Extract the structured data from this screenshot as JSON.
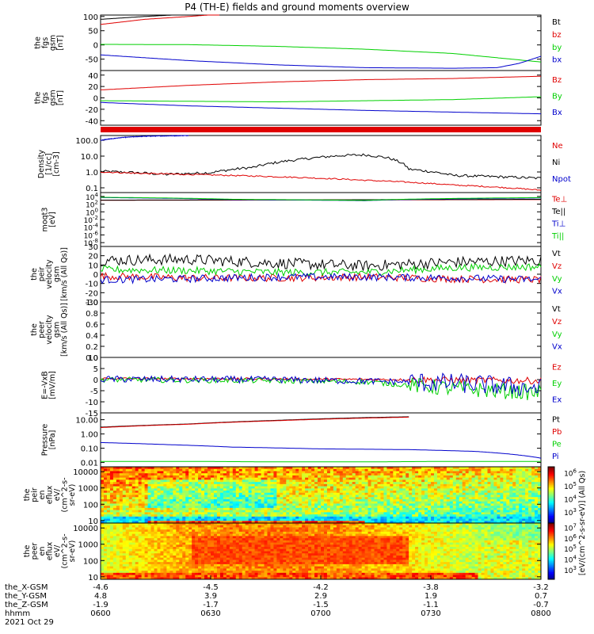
{
  "title": "P4 (TH-E) fields and ground moments overview",
  "colors": {
    "black": "#000000",
    "red": "#e00000",
    "green": "#00d000",
    "blue": "#0000cc",
    "frame": "#000000"
  },
  "chart_data": [
    {
      "type": "line",
      "name": "fgs_gsm",
      "ylabel": [
        "the",
        "fgs",
        "gsm",
        "[nT]"
      ],
      "ylim": [
        -90,
        105
      ],
      "yticks": [
        100,
        50,
        0,
        -50
      ],
      "tick_labels": [
        "100",
        "50",
        "0",
        "-50"
      ],
      "legend": [
        "Bt",
        "bz",
        "by",
        "bx"
      ],
      "legend_colors": [
        "black",
        "red",
        "green",
        "blue"
      ],
      "series": [
        {
          "name": "Bt",
          "color": "black",
          "x": [
            0,
            0.1,
            0.2,
            0.27
          ],
          "y": [
            90,
            100,
            108,
            115
          ]
        },
        {
          "name": "bz",
          "color": "red",
          "x": [
            0,
            0.1,
            0.2,
            0.27
          ],
          "y": [
            72,
            90,
            100,
            108
          ]
        },
        {
          "name": "by",
          "color": "green",
          "x": [
            0,
            0.2,
            0.4,
            0.6,
            0.8,
            0.9,
            1
          ],
          "y": [
            2,
            1,
            -5,
            -15,
            -30,
            -45,
            -60
          ]
        },
        {
          "name": "bx",
          "color": "blue",
          "x": [
            0,
            0.2,
            0.4,
            0.6,
            0.8,
            0.9,
            0.95,
            1
          ],
          "y": [
            -35,
            -55,
            -70,
            -80,
            -82,
            -80,
            -65,
            -40
          ]
        }
      ]
    },
    {
      "type": "line",
      "name": "fgs_gsm_2",
      "ylabel": [
        "the",
        "fgs",
        "gsm",
        "[nT]"
      ],
      "ylim": [
        -48,
        48
      ],
      "yticks": [
        40,
        20,
        0,
        -20,
        -40
      ],
      "tick_labels": [
        "40",
        "20",
        "0",
        "-20",
        "-40"
      ],
      "legend": [
        "Bz",
        "By",
        "Bx"
      ],
      "legend_colors": [
        "red",
        "green",
        "blue"
      ],
      "series": [
        {
          "name": "Bz",
          "color": "red",
          "x": [
            0,
            0.2,
            0.4,
            0.6,
            0.8,
            1
          ],
          "y": [
            14,
            22,
            28,
            32,
            34,
            38
          ]
        },
        {
          "name": "By",
          "color": "green",
          "x": [
            0,
            0.2,
            0.4,
            0.6,
            0.8,
            1
          ],
          "y": [
            -5,
            -6,
            -7,
            -5,
            -3,
            2
          ]
        },
        {
          "name": "Bx",
          "color": "blue",
          "x": [
            0,
            0.2,
            0.4,
            0.6,
            0.8,
            1
          ],
          "y": [
            -8,
            -14,
            -18,
            -22,
            -25,
            -28
          ]
        }
      ]
    },
    {
      "type": "line",
      "name": "density",
      "ylabel": [
        "Density",
        "[1/cc]",
        "[cm-3]"
      ],
      "scale": "log",
      "ylim": [
        0.05,
        200
      ],
      "yticks": [
        100,
        10,
        1,
        0.1
      ],
      "tick_labels": [
        "100.0",
        "10.0",
        "1.0",
        "0.1"
      ],
      "legend": [
        "Ne",
        "Ni",
        "Npot"
      ],
      "legend_colors": [
        "red",
        "black",
        "blue"
      ],
      "series": [
        {
          "name": "Ni",
          "color": "black",
          "x": [
            0,
            0.08,
            0.15,
            0.25,
            0.35,
            0.45,
            0.55,
            0.6,
            0.65,
            0.7,
            0.8,
            1
          ],
          "y": [
            1.1,
            0.9,
            0.7,
            0.9,
            2,
            6,
            11,
            12,
            8,
            1.5,
            0.6,
            0.4
          ]
        },
        {
          "name": "Ne",
          "color": "red",
          "x": [
            0,
            0.1,
            0.2,
            0.4,
            0.6,
            0.8,
            1
          ],
          "y": [
            1.0,
            0.8,
            0.7,
            0.5,
            0.3,
            0.15,
            0.07
          ]
        },
        {
          "name": "Npot",
          "color": "blue",
          "x": [
            0,
            0.05,
            0.1,
            0.15,
            0.2
          ],
          "y": [
            100,
            150,
            180,
            190,
            200
          ]
        }
      ]
    },
    {
      "type": "line",
      "name": "moqt3",
      "ylabel": [
        "moqt3",
        "[eV]"
      ],
      "scale": "log",
      "ylim": [
        1e-09,
        100000.0
      ],
      "yticks": [
        10000.0,
        100.0,
        1.0,
        0.01,
        0.0001,
        1e-06,
        1e-08
      ],
      "tick_labels": [
        "10^4",
        "10^2",
        "10^0",
        "10^-2",
        "10^-4",
        "10^-6",
        "10^-8"
      ],
      "legend": [
        "Te⊥",
        "Te||",
        "Ti⊥",
        "Ti||"
      ],
      "legend_colors": [
        "red",
        "black",
        "blue",
        "green"
      ],
      "series": [
        {
          "name": "Te",
          "color": "red",
          "x": [
            0,
            0.5,
            1
          ],
          "y": [
            1000,
            1200,
            1500
          ]
        },
        {
          "name": "Tell",
          "color": "black",
          "x": [
            0,
            0.5,
            1
          ],
          "y": [
            1100,
            1300,
            1800
          ]
        },
        {
          "name": "Ti",
          "color": "blue",
          "x": [
            0,
            0.3,
            0.6,
            1
          ],
          "y": [
            5000,
            1500,
            800,
            4000
          ]
        },
        {
          "name": "Till",
          "color": "green",
          "x": [
            0,
            0.3,
            0.6,
            1
          ],
          "y": [
            6000,
            1800,
            900,
            5000
          ]
        }
      ]
    },
    {
      "type": "line",
      "name": "peir_velocity",
      "ylabel": [
        "the",
        "peir",
        "velocity",
        "gsm",
        "[km/s (All Qs)]"
      ],
      "ylim": [
        -30,
        30
      ],
      "yticks": [
        30,
        20,
        10,
        0,
        -10,
        -20,
        -30
      ],
      "tick_labels": [
        "30",
        "20",
        "10",
        "0",
        "-10",
        "-20",
        "-30"
      ],
      "legend": [
        "Vt",
        "Vz",
        "Vy",
        "Vx"
      ],
      "legend_colors": [
        "black",
        "red",
        "green",
        "blue"
      ],
      "series": [
        {
          "name": "Vt",
          "color": "black",
          "x": [
            0,
            0.2,
            0.4,
            0.6,
            0.8,
            1
          ],
          "y": [
            15,
            16,
            12,
            9,
            13,
            15
          ]
        },
        {
          "name": "Vz",
          "color": "red",
          "x": [
            0,
            0.2,
            0.4,
            0.6,
            0.8,
            1
          ],
          "y": [
            -2,
            -4,
            -4,
            -3,
            -5,
            -6
          ]
        },
        {
          "name": "Vy",
          "color": "green",
          "x": [
            0,
            0.2,
            0.4,
            0.6,
            0.8,
            1
          ],
          "y": [
            5,
            4,
            2,
            2,
            7,
            8
          ]
        },
        {
          "name": "Vx",
          "color": "blue",
          "x": [
            0,
            0.2,
            0.4,
            0.6,
            0.8,
            1
          ],
          "y": [
            -6,
            -5,
            -3,
            -3,
            -4,
            -6
          ]
        }
      ]
    },
    {
      "type": "line",
      "name": "peer_velocity",
      "ylabel": [
        "the",
        "peer",
        "velocity",
        "gsm",
        "[km/s (All Qs)]"
      ],
      "ylim": [
        0,
        1
      ],
      "yticks": [
        1,
        0.8,
        0.6,
        0.4,
        0.2,
        0
      ],
      "tick_labels": [
        "1.0",
        "0.8",
        "0.6",
        "0.4",
        "0.2",
        "0.0"
      ],
      "legend": [
        "Vt",
        "Vz",
        "Vy",
        "Vx"
      ],
      "legend_colors": [
        "black",
        "red",
        "green",
        "blue"
      ],
      "series": []
    },
    {
      "type": "line",
      "name": "efield",
      "ylabel": [
        "E=-VxB",
        "[mV/m]"
      ],
      "ylim": [
        -15,
        10
      ],
      "yticks": [
        10,
        5,
        0,
        -5,
        -10,
        -15
      ],
      "tick_labels": [
        "10",
        "5",
        "0",
        "-5",
        "-10",
        "-15"
      ],
      "legend": [
        "Ez",
        "Ey",
        "Ex"
      ],
      "legend_colors": [
        "red",
        "green",
        "blue"
      ],
      "series": [
        {
          "name": "Ez",
          "color": "red",
          "x": [
            0,
            0.4,
            0.7,
            1
          ],
          "y": [
            0.5,
            0.3,
            0,
            -0.5
          ]
        },
        {
          "name": "Ey",
          "color": "green",
          "x": [
            0,
            0.4,
            0.6,
            0.8,
            1
          ],
          "y": [
            0,
            -0.5,
            -1,
            -4,
            -6
          ]
        },
        {
          "name": "Ex",
          "color": "blue",
          "x": [
            0,
            0.4,
            0.7,
            0.85,
            1
          ],
          "y": [
            0.2,
            0,
            -1,
            -2,
            -4
          ]
        }
      ]
    },
    {
      "type": "line",
      "name": "pressure",
      "ylabel": [
        "Pressure",
        "[nPa]"
      ],
      "scale": "log",
      "ylim": [
        0.005,
        30
      ],
      "yticks": [
        10,
        1,
        0.1,
        0.01
      ],
      "tick_labels": [
        "10.00",
        "1.00",
        "0.10",
        "0.01"
      ],
      "legend": [
        "Pt",
        "Pb",
        "Pe",
        "Pi"
      ],
      "legend_colors": [
        "black",
        "red",
        "green",
        "blue"
      ],
      "series": [
        {
          "name": "Pt",
          "color": "black",
          "x": [
            0,
            0.2,
            0.4,
            0.6,
            0.7
          ],
          "y": [
            3,
            5,
            9,
            14,
            16
          ]
        },
        {
          "name": "Pb",
          "color": "red",
          "x": [
            0,
            0.2,
            0.4,
            0.6,
            0.7
          ],
          "y": [
            2.8,
            4.8,
            8.5,
            13,
            15
          ]
        },
        {
          "name": "Pe",
          "color": "green",
          "x": [
            0,
            0.2,
            0.4,
            0.6,
            0.8,
            1
          ],
          "y": [
            0.012,
            0.012,
            0.011,
            0.011,
            0.012,
            0.012
          ]
        },
        {
          "name": "Pi",
          "color": "blue",
          "x": [
            0,
            0.15,
            0.3,
            0.5,
            0.7,
            0.85,
            1
          ],
          "y": [
            0.25,
            0.18,
            0.12,
            0.09,
            0.08,
            0.06,
            0.02
          ]
        }
      ]
    },
    {
      "type": "heatmap",
      "name": "peir_en_eflux",
      "ylabel": [
        "the",
        "peir",
        "en",
        "eflux",
        "eV/",
        "(cm^2-s-",
        "sr-eV)"
      ],
      "scale": "log",
      "ylim": [
        7,
        20000
      ],
      "yticks": [
        10000,
        1000,
        100,
        10
      ],
      "tick_labels": [
        "10000",
        "1000",
        "100",
        "10"
      ],
      "colorbar_labels": [
        "10^6",
        "10^5",
        "10^4",
        "10^3"
      ]
    },
    {
      "type": "heatmap",
      "name": "peer_en_eflux",
      "ylabel": [
        "the",
        "peer",
        "en",
        "eflux",
        "eV/",
        "(cm^2-s-",
        "sr-eV)"
      ],
      "scale": "log",
      "ylim": [
        7,
        20000
      ],
      "yticks": [
        10000,
        1000,
        100,
        10
      ],
      "tick_labels": [
        "10000",
        "1000",
        "100",
        "10"
      ],
      "colorbar_labels": [
        "10^7",
        "10^6",
        "10^5",
        "10^4",
        "10^3"
      ]
    }
  ],
  "colorbar_unit": "[eV/(cm^2-s-sr-eV)] (All Qs)",
  "xaxis": {
    "row_labels": [
      "the_X-GSM",
      "the_Y-GSM",
      "the_Z-GSM",
      "hhmm",
      "2021 Oct 29"
    ],
    "ticks": [
      {
        "x_gsm": "-4.6",
        "y_gsm": "4.8",
        "z_gsm": "-1.9",
        "hhmm": "0600"
      },
      {
        "x_gsm": "-4.5",
        "y_gsm": "3.9",
        "z_gsm": "-1.7",
        "hhmm": "0630"
      },
      {
        "x_gsm": "-4.2",
        "y_gsm": "2.9",
        "z_gsm": "-1.5",
        "hhmm": "0700"
      },
      {
        "x_gsm": "-3.8",
        "y_gsm": "1.9",
        "z_gsm": "-1.1",
        "hhmm": "0730"
      },
      {
        "x_gsm": "-3.2",
        "y_gsm": "0.7",
        "z_gsm": "-0.7",
        "hhmm": "0800"
      }
    ]
  }
}
